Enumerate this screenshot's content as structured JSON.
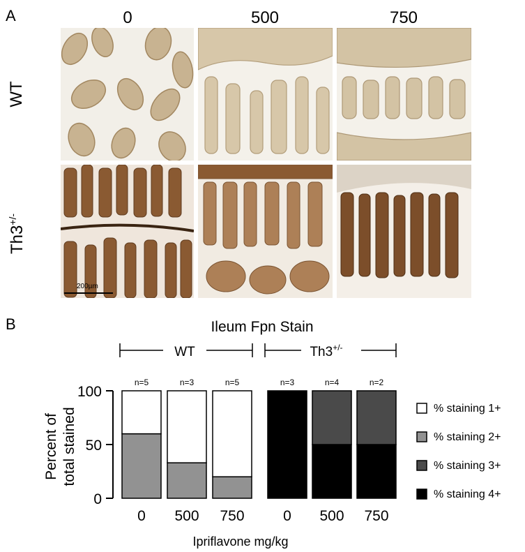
{
  "panel_a": {
    "letter": "A",
    "columns": [
      "0",
      "500",
      "750"
    ],
    "rows": [
      {
        "label": "WT",
        "stain": "light"
      },
      {
        "label_main": "Th3",
        "label_sup": "+/-",
        "stain": "dark"
      }
    ],
    "scale_bar": "200µm"
  },
  "chart_data": {
    "panel_letter": "B",
    "type": "bar",
    "stacked": true,
    "title": "Ileum Fpn Stain",
    "xlabel": "Ipriflavone mg/kg",
    "ylabel_lines": [
      "Percent of",
      "total stained"
    ],
    "ylim": [
      0,
      100
    ],
    "yticks": [
      0,
      50,
      100
    ],
    "groups": [
      {
        "label": "WT",
        "label_sup": ""
      },
      {
        "label": "Th3",
        "label_sup": "+/-"
      }
    ],
    "categories": [
      "0",
      "500",
      "750",
      "0",
      "500",
      "750"
    ],
    "n_labels": [
      "n=5",
      "n=3",
      "n=5",
      "n=3",
      "n=4",
      "n=2"
    ],
    "series": [
      {
        "name": "% staining 1+",
        "color": "#ffffff",
        "values": [
          40,
          67,
          80,
          0,
          0,
          0
        ]
      },
      {
        "name": "% staining 2+",
        "color": "#929292",
        "values": [
          60,
          33,
          20,
          0,
          0,
          0
        ]
      },
      {
        "name": "% staining 3+",
        "color": "#4a4a4a",
        "values": [
          0,
          0,
          0,
          0,
          50,
          50
        ]
      },
      {
        "name": "% staining 4+",
        "color": "#000000",
        "values": [
          0,
          0,
          0,
          100,
          50,
          50
        ]
      }
    ],
    "legend_position": "right"
  }
}
